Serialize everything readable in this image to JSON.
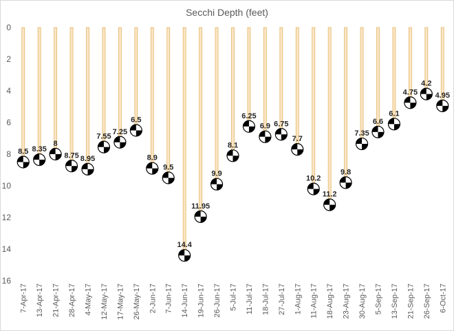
{
  "chart_data": {
    "type": "bar",
    "title": "Secchi Depth (feet)",
    "xlabel": "",
    "ylabel": "",
    "y_inverted": true,
    "ylim": [
      0,
      16
    ],
    "y_ticks": [
      0,
      2,
      4,
      6,
      8,
      10,
      12,
      14,
      16
    ],
    "categories": [
      "7-Apr-17",
      "13-Apr-17",
      "21-Apr-17",
      "28-Apr-17",
      "4-May-17",
      "12-May-17",
      "17-May-17",
      "26-May-17",
      "2-Jun-17",
      "7-Jun-17",
      "14-Jun-17",
      "19-Jun-17",
      "26-Jun-17",
      "5-Jul-17",
      "11-Jul-17",
      "18-Jul-17",
      "27-Jul-17",
      "1-Aug-17",
      "11-Aug-17",
      "18-Aug-17",
      "23-Aug-17",
      "30-Aug-17",
      "5-Sep-17",
      "13-Sep-17",
      "21-Sep-17",
      "26-Sep-17",
      "6-Oct-17"
    ],
    "values": [
      8.5,
      8.35,
      8,
      8.75,
      8.95,
      7.55,
      7.25,
      6.5,
      8.9,
      9.5,
      14.4,
      11.95,
      9.9,
      8.1,
      6.25,
      6.9,
      6.75,
      7.7,
      10.2,
      11.2,
      9.8,
      7.35,
      6.6,
      6.1,
      4.75,
      4.2,
      4.95
    ],
    "data_labels": [
      "8.5",
      "8.35",
      "8",
      "8.75",
      "8.95",
      "7.55",
      "7.25",
      "6.5",
      "8.9",
      "9.5",
      "14.4",
      "11.95",
      "9.9",
      "8.1",
      "6.25",
      "6.9",
      "6.75",
      "7.7",
      "10.2",
      "11.2",
      "9.8",
      "7.35",
      "6.6",
      "6.1",
      "4.75",
      "4.2",
      "4.95"
    ],
    "marker": "secchi-disk",
    "colors": {
      "bar_fill": "#fbe5c6",
      "bar_edge": "#e2b765",
      "grid": "#d9d9d9",
      "text": "#595959"
    },
    "grid": false,
    "legend": "none"
  }
}
